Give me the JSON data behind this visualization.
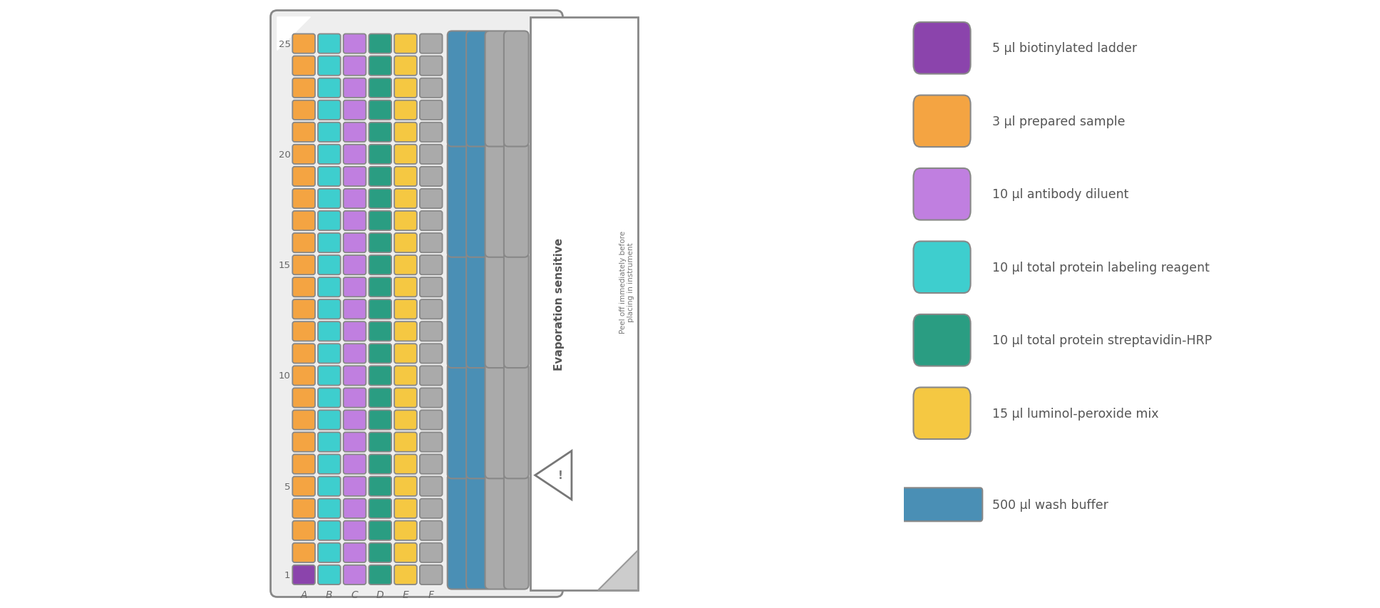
{
  "fig_width": 19.36,
  "fig_height": 8.54,
  "n_rows": 25,
  "columns": [
    {
      "name": "A",
      "color": "#F4A442",
      "outline": "#888888",
      "row1_color": "#8B44AC",
      "row1_outline": "#888888"
    },
    {
      "name": "B",
      "color": "#3ECECE",
      "outline": "#888888"
    },
    {
      "name": "C",
      "color": "#C07FE0",
      "outline": "#888888"
    },
    {
      "name": "D",
      "color": "#2A9D82",
      "outline": "#888888"
    },
    {
      "name": "E",
      "color": "#F5C842",
      "outline": "#888888"
    },
    {
      "name": "F",
      "color": "#AAAAAA",
      "outline": "#888888"
    }
  ],
  "wash_blue_color": "#4A8FB5",
  "wash_blue_outline": "#888888",
  "wash_gray_color": "#AAAAAA",
  "wash_gray_outline": "#888888",
  "row_labels": [
    1,
    5,
    10,
    15,
    20,
    25
  ],
  "col_labels": [
    "A",
    "B",
    "C",
    "D",
    "E",
    "F"
  ],
  "legend_items": [
    {
      "color": "#8B44AC",
      "outline": "#888888",
      "label": "5 µl biotinylated ladder",
      "is_rect": false
    },
    {
      "color": "#F4A442",
      "outline": "#888888",
      "label": "3 µl prepared sample",
      "is_rect": false
    },
    {
      "color": "#C07FE0",
      "outline": "#888888",
      "label": "10 µl antibody diluent",
      "is_rect": false
    },
    {
      "color": "#3ECECE",
      "outline": "#888888",
      "label": "10 µl total protein labeling reagent",
      "is_rect": false
    },
    {
      "color": "#2A9D82",
      "outline": "#888888",
      "label": "10 µl total protein streptavidin-HRP",
      "is_rect": false
    },
    {
      "color": "#F5C842",
      "outline": "#888888",
      "label": "15 µl luminol-peroxide mix",
      "is_rect": false
    },
    {
      "color": "#4A8FB5",
      "outline": "#888888",
      "label": "500 µl wash buffer",
      "is_rect": true
    }
  ]
}
